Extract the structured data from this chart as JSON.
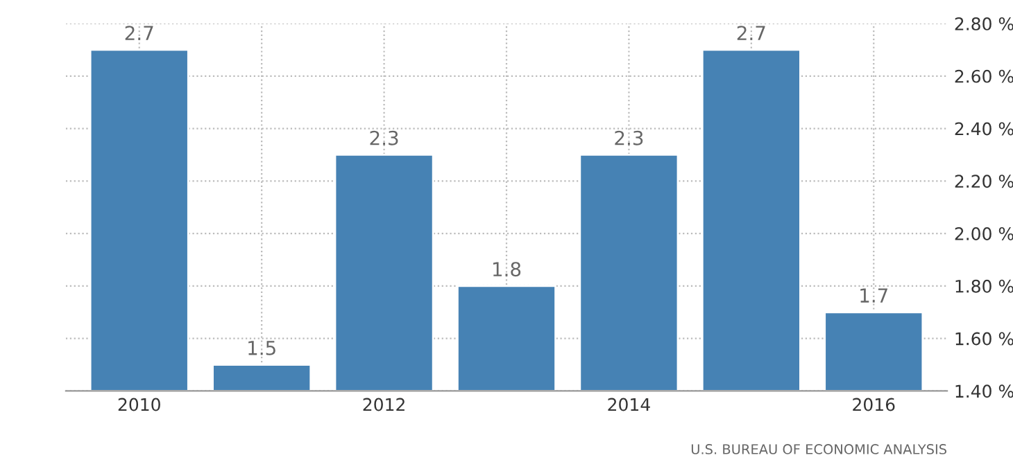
{
  "chart_data": {
    "type": "bar",
    "categories": [
      "2010",
      null,
      "2012",
      null,
      "2014",
      null,
      "2016"
    ],
    "values": [
      2.7,
      1.5,
      2.3,
      1.8,
      2.3,
      2.7,
      1.7
    ],
    "color": "#4682b4",
    "ylim": [
      1.4,
      2.8
    ],
    "yticks": [
      {
        "value": 1.4,
        "label": "1.40 %"
      },
      {
        "value": 1.6,
        "label": "1.60 %"
      },
      {
        "value": 1.8,
        "label": "1.80 %"
      },
      {
        "value": 2.0,
        "label": "2.00 %"
      },
      {
        "value": 2.2,
        "label": "2.20 %"
      },
      {
        "value": 2.4,
        "label": "2.40 %"
      },
      {
        "value": 2.6,
        "label": "2.60 %"
      },
      {
        "value": 2.8,
        "label": "2.80 %"
      }
    ],
    "grid": true,
    "data_labels": true,
    "annotations": [
      "U.S. BUREAU OF ECONOMIC ANALYSIS"
    ]
  }
}
